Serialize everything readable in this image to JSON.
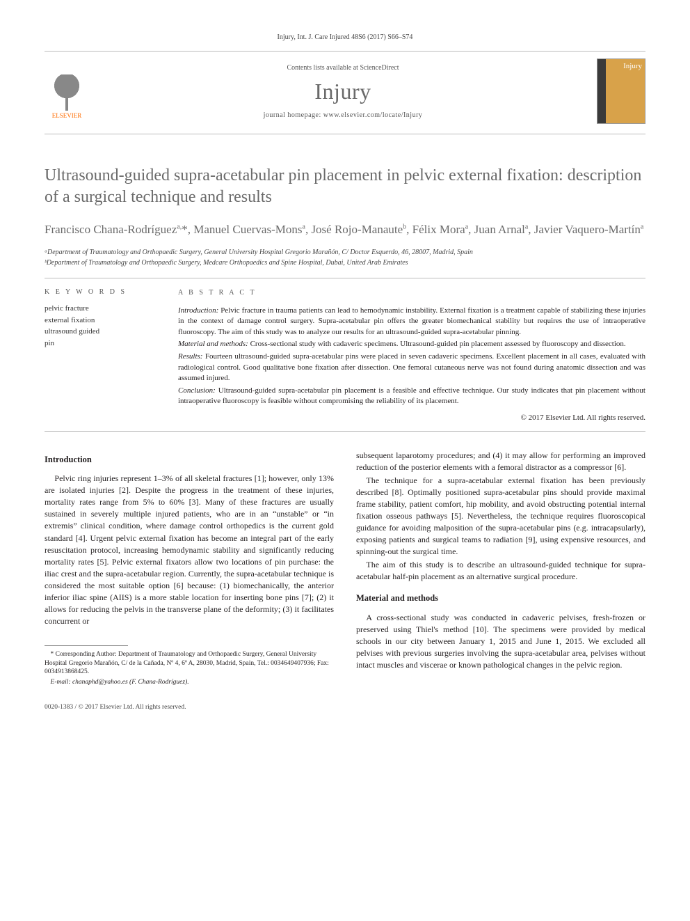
{
  "running_head": "Injury, Int. J. Care Injured 48S6 (2017) S66–S74",
  "masthead": {
    "contents_line": "Contents lists available at ScienceDirect",
    "journal_name": "Injury",
    "homepage_line": "journal homepage: www.elsevier.com/locate/Injury",
    "publisher_logo_label": "ELSEVIER",
    "cover_label": "Injury"
  },
  "article": {
    "title": "Ultrasound-guided supra-acetabular pin placement in pelvic external fixation: description of a surgical technique and results",
    "authors_html": "Francisco Chana-Rodríguez<sup>a,</sup>*, Manuel Cuervas-Mons<sup>a</sup>, José Rojo-Manaute<sup>b</sup>, Félix Mora<sup>a</sup>, Juan Arnal<sup>a</sup>, Javier Vaquero-Martín<sup>a</sup>",
    "affiliations": [
      "ᵃDepartment of Traumatology and Orthopaedic Surgery, General University Hospital Gregorio Marañón, C/ Doctor Esquerdo, 46, 28007, Madrid, Spain",
      "ᵇDepartment of Traumatology and Orthopaedic Surgery, Medcare Orthopaedics and Spine Hospital, Dubai, United Arab Emirates"
    ]
  },
  "keywords": {
    "label": "K E Y W O R D S",
    "items": [
      "pelvic fracture",
      "external fixation",
      "ultrasound guided",
      "pin"
    ]
  },
  "abstract": {
    "label": "A B S T R A C T",
    "intro": "Introduction: Pelvic fracture in trauma patients can lead to hemodynamic instability. External fixation is a treatment capable of stabilizing these injuries in the context of damage control surgery. Supra-acetabular pin offers the greater biomechanical stability but requires the use of intraoperative fluoroscopy. The aim of this study was to analyze our results for an ultrasound-guided supra-acetabular pinning.",
    "methods": "Material and methods: Cross-sectional study with cadaveric specimens. Ultrasound-guided pin placement assessed by fluoroscopy and dissection.",
    "results": "Results: Fourteen ultrasound-guided supra-acetabular pins were placed in seven cadaveric specimens. Excellent placement in all cases, evaluated with radiological control. Good qualitative bone fixation after dissection. One femoral cutaneous nerve was not found during anatomic dissection and was assumed injured.",
    "conclusion": "Conclusion: Ultrasound-guided supra-acetabular pin placement is a feasible and effective technique. Our study indicates that pin placement without intraoperative fluoroscopy is feasible without compromising the reliability of its placement.",
    "copyright": "© 2017 Elsevier Ltd. All rights reserved."
  },
  "body": {
    "left": {
      "heading": "Introduction",
      "p1": "Pelvic ring injuries represent 1–3% of all skeletal fractures [1]; however, only 13% are isolated injuries [2]. Despite the progress in the treatment of these injuries, mortality rates range from 5% to 60% [3]. Many of these fractures are usually sustained in severely multiple injured patients, who are in an “unstable” or “in extremis” clinical condition, where damage control orthopedics is the current gold standard [4]. Urgent pelvic external fixation has become an integral part of the early resuscitation protocol, increasing hemodynamic stability and significantly reducing mortality rates [5]. Pelvic external fixators allow two locations of pin purchase: the iliac crest and the supra-acetabular region. Currently, the supra-acetabular technique is considered the most suitable option [6] because: (1) biomechanically, the anterior inferior iliac spine (AIIS) is a more stable location for inserting bone pins [7]; (2) it allows for reducing the pelvis in the transverse plane of the deformity; (3) it facilitates concurrent or"
    },
    "right": {
      "p1": "subsequent laparotomy procedures; and (4) it may allow for performing an improved reduction of the posterior elements with a femoral distractor as a compressor [6].",
      "p2": "The technique for a supra-acetabular external fixation has been previously described [8]. Optimally positioned supra-acetabular pins should provide maximal frame stability, patient comfort, hip mobility, and avoid obstructing potential internal fixation osseous pathways [5]. Nevertheless, the technique requires fluoroscopical guidance for avoiding malposition of the supra-acetabular pins (e.g. intracapsularly), exposing patients and surgical teams to radiation [9], using expensive resources, and spinning-out the surgical time.",
      "p3": "The aim of this study is to describe an ultrasound-guided technique for supra-acetabular half-pin placement as an alternative surgical procedure.",
      "heading2": "Material and methods",
      "p4": "A cross-sectional study was conducted in cadaveric pelvises, fresh-frozen or preserved using Thiel's method [10]. The specimens were provided by medical schools in our city between January 1, 2015 and June 1, 2015. We excluded all pelvises with previous surgeries involving the supra-acetabular area, pelvises without intact muscles and viscerae or known pathological changes in the pelvic region."
    }
  },
  "footnotes": {
    "corr": "* Corresponding Author: Department of Traumatology and Orthopaedic Surgery, General University Hospital Gregorio Marañón, C/ de la Cañada, Nº 4, 6º A, 28030, Madrid, Spain, Tel.: 0034649407936; Fax: 0034913868425.",
    "email": "E-mail: chanaphd@yahoo.es (F. Chana-Rodríguez)."
  },
  "footer": {
    "left": "0020-1383 / © 2017 Elsevier Ltd. All rights reserved.",
    "right": ""
  },
  "colors": {
    "text": "#231f20",
    "muted": "#6a6a6a",
    "rule": "#bbbbbb",
    "elsevier_orange": "#ff6c00",
    "cover_bg": "#d8a24a"
  }
}
